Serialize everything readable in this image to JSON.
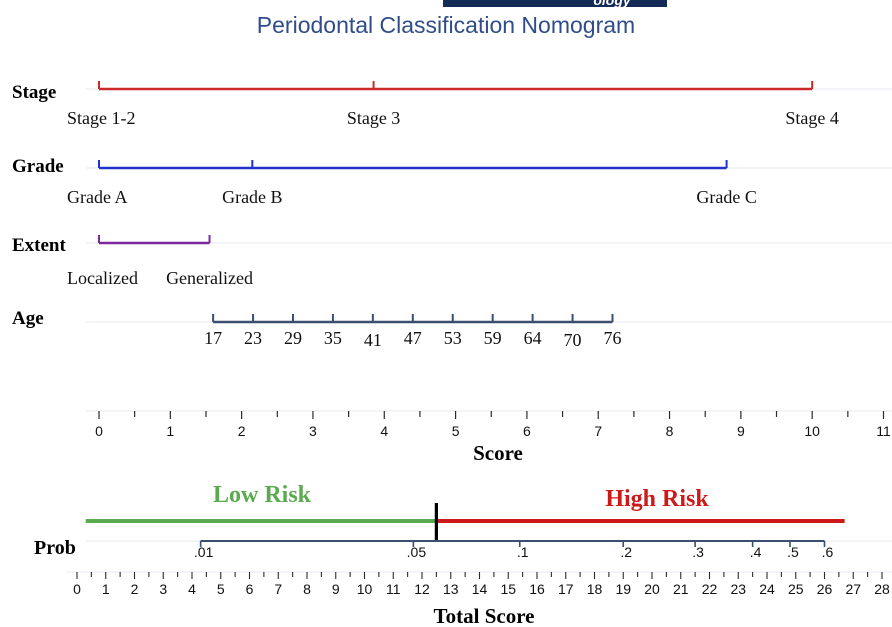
{
  "header": {
    "banner_text": "ology",
    "title": "Periodontal Classification Nomogram",
    "title_color": "#2f4d8a",
    "banner_color": "#142a57"
  },
  "chart_data": {
    "type": "nomogram",
    "variables": [
      {
        "name": "Stage",
        "color": "#cc2a2a",
        "ticks": [
          {
            "label": "Stage 1-2",
            "points": 0
          },
          {
            "label": "Stage 3",
            "points": 3.85
          },
          {
            "label": "Stage 4",
            "points": 10
          }
        ]
      },
      {
        "name": "Grade",
        "color": "#2233cc",
        "ticks": [
          {
            "label": "Grade A",
            "points": 0
          },
          {
            "label": "Grade B",
            "points": 2.15
          },
          {
            "label": "Grade C",
            "points": 8.8
          }
        ]
      },
      {
        "name": "Extent",
        "color": "#7a2a9a",
        "ticks": [
          {
            "label": "Localized",
            "points": 0
          },
          {
            "label": "Generalized",
            "points": 1.55
          }
        ]
      },
      {
        "name": "Age",
        "color": "#3a4e70",
        "ticks": [
          {
            "label": "17",
            "points": 1.6
          },
          {
            "label": "23",
            "points": 2.16
          },
          {
            "label": "29",
            "points": 2.72
          },
          {
            "label": "35",
            "points": 3.28
          },
          {
            "label": "41",
            "points": 3.84
          },
          {
            "label": "47",
            "points": 4.4
          },
          {
            "label": "53",
            "points": 4.96
          },
          {
            "label": "59",
            "points": 5.52
          },
          {
            "label": "64",
            "points": 6.08
          },
          {
            "label": "70",
            "points": 6.64
          },
          {
            "label": "76",
            "points": 7.2
          }
        ]
      }
    ],
    "score_axis": {
      "label": "Score",
      "range": [
        0,
        11
      ],
      "ticks": [
        0,
        1,
        2,
        3,
        4,
        5,
        6,
        7,
        8,
        9,
        10,
        11
      ]
    },
    "risk": {
      "low_label": "Low Risk",
      "high_label": "High Risk",
      "low_color": "#5aaa4f",
      "high_color": "#cc1a1a",
      "cutoff_total": 12.5,
      "low_start_total": 0.3,
      "high_end_total": 26.7
    },
    "prob_axis": {
      "label": "Prob",
      "ticks": [
        {
          "label": ".01",
          "total": 4.3
        },
        {
          "label": ".05",
          "total": 11.7
        },
        {
          "label": ".1",
          "total": 15.4
        },
        {
          "label": ".2",
          "total": 19.0
        },
        {
          "label": ".3",
          "total": 21.5
        },
        {
          "label": ".4",
          "total": 23.5
        },
        {
          "label": ".5",
          "total": 24.8
        },
        {
          "label": ".6",
          "total": 26.0
        }
      ]
    },
    "total_axis": {
      "label": "Total Score",
      "range": [
        0,
        28
      ],
      "ticks": [
        0,
        1,
        2,
        3,
        4,
        5,
        6,
        7,
        8,
        9,
        10,
        11,
        12,
        13,
        14,
        15,
        16,
        17,
        18,
        19,
        20,
        21,
        22,
        23,
        24,
        25,
        26,
        27,
        28
      ]
    }
  }
}
